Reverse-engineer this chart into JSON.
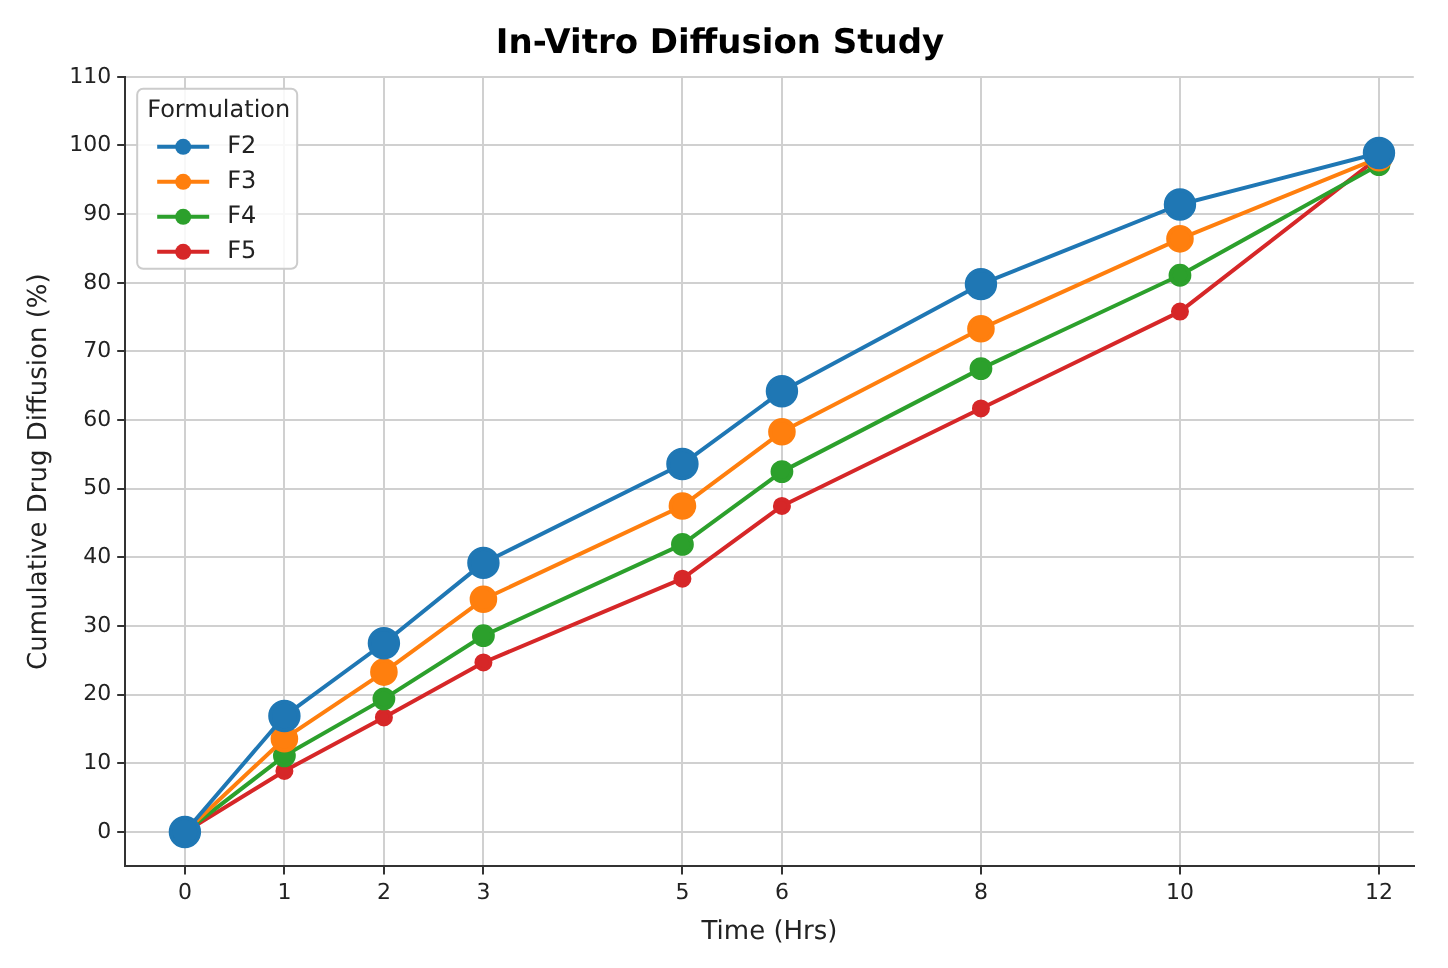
{
  "chart_data": {
    "type": "line",
    "title": "In-Vitro Diffusion Study",
    "xlabel": "Time (Hrs)",
    "ylabel": "Cumulative Drug Diffusion (%)",
    "legend_title": "Formulation",
    "x": [
      0,
      1,
      2,
      3,
      5,
      6,
      8,
      10,
      12
    ],
    "series": [
      {
        "name": "F2",
        "color": "#1f77b4",
        "values": [
          0,
          16.9,
          27.5,
          39.2,
          53.6,
          64.2,
          79.8,
          91.4,
          98.9
        ]
      },
      {
        "name": "F3",
        "color": "#ff7f0e",
        "values": [
          0,
          13.6,
          23.3,
          33.9,
          47.5,
          58.3,
          73.3,
          86.4,
          98.2
        ]
      },
      {
        "name": "F4",
        "color": "#2ca02c",
        "values": [
          0,
          11.1,
          19.4,
          28.6,
          41.9,
          52.5,
          67.5,
          81.1,
          97.2
        ]
      },
      {
        "name": "F5",
        "color": "#d62728",
        "values": [
          0,
          8.9,
          16.7,
          24.7,
          36.9,
          47.5,
          61.7,
          75.8,
          98.3
        ]
      }
    ],
    "xlim": [
      -0.6,
      12.35
    ],
    "xticks": [
      0,
      1,
      2,
      3,
      5,
      6,
      8,
      10,
      12
    ],
    "ylim": [
      -5,
      110
    ],
    "yticks": [
      0,
      10,
      20,
      30,
      40,
      50,
      60,
      70,
      80,
      90,
      100,
      110
    ],
    "grid": true,
    "legend": "top left",
    "marker": "circle",
    "line_style": "solid"
  }
}
